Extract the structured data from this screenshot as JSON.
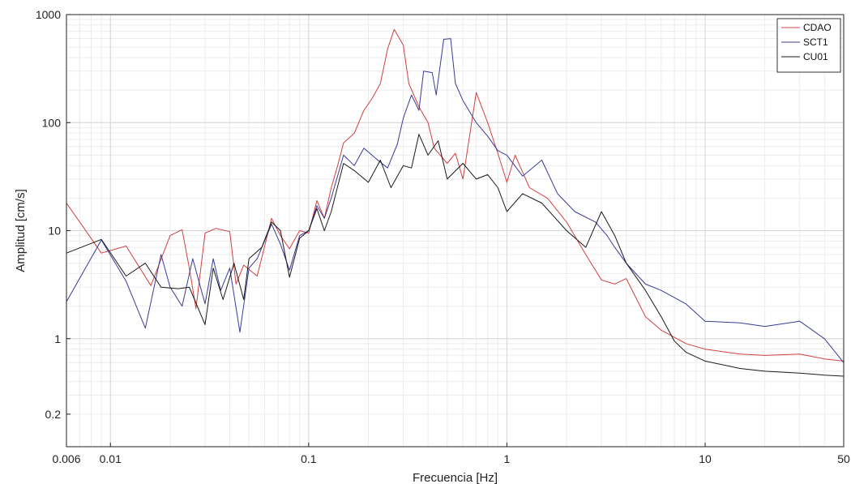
{
  "chart_data": {
    "type": "line",
    "title": "",
    "xlabel": "Frecuencia [Hz]",
    "ylabel": "Amplitud [cm/s]",
    "x_scale": "log",
    "y_scale": "log",
    "xlim": [
      0.006,
      50
    ],
    "ylim": [
      0.1,
      1000
    ],
    "x_ticks": [
      0.006,
      0.01,
      0.1,
      1,
      10,
      50
    ],
    "x_tick_labels": [
      "0.006",
      "0.01",
      "0.1",
      "1",
      "10",
      "50"
    ],
    "y_ticks": [
      0.2,
      1,
      10,
      100,
      1000
    ],
    "y_tick_labels": [
      "0.2",
      "1",
      "10",
      "100",
      "1000"
    ],
    "grid": true,
    "legend_position": "top-right",
    "series": [
      {
        "name": "CDAO",
        "color": "#d04040",
        "points": [
          [
            0.006,
            18
          ],
          [
            0.009,
            6.2
          ],
          [
            0.012,
            7.2
          ],
          [
            0.016,
            3.1
          ],
          [
            0.02,
            9
          ],
          [
            0.023,
            10.2
          ],
          [
            0.025,
            4.5
          ],
          [
            0.027,
            1.9
          ],
          [
            0.03,
            9.5
          ],
          [
            0.034,
            10.5
          ],
          [
            0.04,
            9.8
          ],
          [
            0.043,
            3.2
          ],
          [
            0.047,
            4.8
          ],
          [
            0.055,
            3.8
          ],
          [
            0.065,
            13
          ],
          [
            0.072,
            9
          ],
          [
            0.08,
            6.8
          ],
          [
            0.09,
            10
          ],
          [
            0.1,
            9.5
          ],
          [
            0.11,
            19
          ],
          [
            0.12,
            13
          ],
          [
            0.13,
            25
          ],
          [
            0.14,
            40
          ],
          [
            0.15,
            65
          ],
          [
            0.17,
            80
          ],
          [
            0.19,
            130
          ],
          [
            0.21,
            170
          ],
          [
            0.23,
            230
          ],
          [
            0.25,
            480
          ],
          [
            0.27,
            730
          ],
          [
            0.3,
            520
          ],
          [
            0.32,
            230
          ],
          [
            0.36,
            140
          ],
          [
            0.4,
            100
          ],
          [
            0.43,
            58
          ],
          [
            0.5,
            42
          ],
          [
            0.55,
            52
          ],
          [
            0.6,
            30
          ],
          [
            0.7,
            190
          ],
          [
            0.8,
            100
          ],
          [
            0.9,
            52
          ],
          [
            1.0,
            28
          ],
          [
            1.1,
            50
          ],
          [
            1.3,
            25
          ],
          [
            1.6,
            20
          ],
          [
            2.0,
            12
          ],
          [
            2.5,
            6
          ],
          [
            3.0,
            3.5
          ],
          [
            3.5,
            3.2
          ],
          [
            4.0,
            3.6
          ],
          [
            5.0,
            1.6
          ],
          [
            6.0,
            1.2
          ],
          [
            8.0,
            0.9
          ],
          [
            10,
            0.8
          ],
          [
            15,
            0.72
          ],
          [
            20,
            0.7
          ],
          [
            30,
            0.72
          ],
          [
            40,
            0.65
          ],
          [
            50,
            0.62
          ]
        ]
      },
      {
        "name": "SCT1",
        "color": "#3a3a9a",
        "points": [
          [
            0.006,
            2.2
          ],
          [
            0.009,
            8.2
          ],
          [
            0.012,
            3.4
          ],
          [
            0.015,
            1.25
          ],
          [
            0.018,
            6
          ],
          [
            0.02,
            3
          ],
          [
            0.023,
            2
          ],
          [
            0.026,
            5.5
          ],
          [
            0.03,
            2.1
          ],
          [
            0.033,
            5.5
          ],
          [
            0.036,
            2.8
          ],
          [
            0.04,
            4.5
          ],
          [
            0.045,
            1.15
          ],
          [
            0.05,
            4.5
          ],
          [
            0.055,
            5.5
          ],
          [
            0.065,
            11.5
          ],
          [
            0.072,
            7.5
          ],
          [
            0.08,
            4.3
          ],
          [
            0.09,
            9
          ],
          [
            0.1,
            10
          ],
          [
            0.11,
            17
          ],
          [
            0.12,
            13
          ],
          [
            0.13,
            20
          ],
          [
            0.15,
            50
          ],
          [
            0.17,
            40
          ],
          [
            0.19,
            58
          ],
          [
            0.22,
            46
          ],
          [
            0.25,
            38
          ],
          [
            0.28,
            63
          ],
          [
            0.3,
            110
          ],
          [
            0.33,
            180
          ],
          [
            0.36,
            130
          ],
          [
            0.38,
            300
          ],
          [
            0.42,
            290
          ],
          [
            0.44,
            180
          ],
          [
            0.48,
            590
          ],
          [
            0.52,
            600
          ],
          [
            0.55,
            230
          ],
          [
            0.6,
            160
          ],
          [
            0.7,
            100
          ],
          [
            0.8,
            75
          ],
          [
            0.9,
            55
          ],
          [
            1.0,
            50
          ],
          [
            1.2,
            32
          ],
          [
            1.5,
            45
          ],
          [
            1.8,
            22
          ],
          [
            2.2,
            15
          ],
          [
            2.8,
            12
          ],
          [
            3.2,
            9
          ],
          [
            3.5,
            7
          ],
          [
            4.0,
            5
          ],
          [
            5.0,
            3.2
          ],
          [
            6.0,
            2.8
          ],
          [
            8.0,
            2.1
          ],
          [
            10,
            1.45
          ],
          [
            15,
            1.4
          ],
          [
            20,
            1.3
          ],
          [
            30,
            1.45
          ],
          [
            40,
            1.0
          ],
          [
            50,
            0.6
          ]
        ]
      },
      {
        "name": "CU01",
        "color": "#1a1a1a",
        "points": [
          [
            0.006,
            6.2
          ],
          [
            0.009,
            8.3
          ],
          [
            0.012,
            3.8
          ],
          [
            0.015,
            5
          ],
          [
            0.018,
            3.0
          ],
          [
            0.022,
            2.9
          ],
          [
            0.025,
            3.0
          ],
          [
            0.03,
            1.35
          ],
          [
            0.033,
            4.5
          ],
          [
            0.037,
            2.3
          ],
          [
            0.042,
            5
          ],
          [
            0.047,
            2.3
          ],
          [
            0.05,
            5.5
          ],
          [
            0.058,
            7
          ],
          [
            0.065,
            12
          ],
          [
            0.072,
            10
          ],
          [
            0.08,
            3.7
          ],
          [
            0.09,
            8.5
          ],
          [
            0.1,
            10
          ],
          [
            0.11,
            16
          ],
          [
            0.12,
            10
          ],
          [
            0.13,
            15
          ],
          [
            0.15,
            42
          ],
          [
            0.17,
            36
          ],
          [
            0.2,
            28
          ],
          [
            0.23,
            45
          ],
          [
            0.26,
            25
          ],
          [
            0.3,
            40
          ],
          [
            0.33,
            38
          ],
          [
            0.36,
            78
          ],
          [
            0.4,
            50
          ],
          [
            0.45,
            68
          ],
          [
            0.5,
            30
          ],
          [
            0.6,
            42
          ],
          [
            0.7,
            30
          ],
          [
            0.8,
            33
          ],
          [
            0.9,
            25
          ],
          [
            1.0,
            15
          ],
          [
            1.2,
            22
          ],
          [
            1.5,
            18
          ],
          [
            2.0,
            10
          ],
          [
            2.5,
            7
          ],
          [
            3.0,
            15
          ],
          [
            3.5,
            9
          ],
          [
            4.0,
            5
          ],
          [
            5.0,
            2.8
          ],
          [
            6.0,
            1.6
          ],
          [
            7.0,
            0.95
          ],
          [
            8.0,
            0.75
          ],
          [
            10,
            0.62
          ],
          [
            15,
            0.53
          ],
          [
            20,
            0.5
          ],
          [
            30,
            0.48
          ],
          [
            40,
            0.46
          ],
          [
            50,
            0.45
          ]
        ]
      }
    ]
  }
}
